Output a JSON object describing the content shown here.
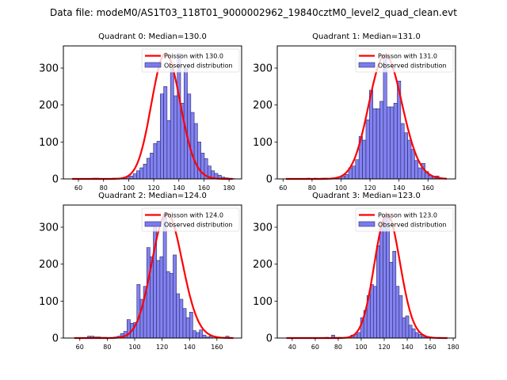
{
  "figure": {
    "suptitle": "Data file: modeM0/AS1T03_118T01_9000002962_19840cztM0_level2_quad_clean.evt"
  },
  "colors": {
    "bar_fill": "#7b7bf0",
    "bar_edge": "#2a2a6a",
    "poisson_line": "#ff0000"
  },
  "chart_data": [
    {
      "type": "bar",
      "title": "Quadrant 0: Median=130.0",
      "xlim": [
        48,
        190
      ],
      "ylim": [
        0,
        360
      ],
      "xticks": [
        60,
        80,
        100,
        120,
        140,
        160,
        180
      ],
      "yticks": [
        0,
        100,
        200,
        300
      ],
      "legend": {
        "position": "top-right",
        "entries": [
          "Poisson with 130.0",
          "Observed distribution"
        ]
      },
      "bin_width": 2.7,
      "bins_start": 55,
      "histogram": [
        0,
        0,
        0,
        0,
        0,
        0,
        2,
        2,
        0,
        1,
        0,
        0,
        2,
        0,
        2,
        3,
        5,
        8,
        14,
        22,
        30,
        40,
        56,
        70,
        96,
        102,
        230,
        250,
        158,
        298,
        225,
        340,
        205,
        300,
        230,
        180,
        150,
        100,
        70,
        55,
        35,
        22,
        15,
        10,
        5,
        3,
        2,
        1
      ],
      "poisson": {
        "mean": 130.0,
        "peak": 340,
        "x_range": [
          55,
          183
        ]
      }
    },
    {
      "type": "bar",
      "title": "Quadrant 1: Median=131.0",
      "xlim": [
        56,
        179
      ],
      "ylim": [
        0,
        360
      ],
      "xticks": [
        60,
        80,
        100,
        120,
        140,
        160
      ],
      "yticks": [
        0,
        100,
        200,
        300
      ],
      "legend": {
        "position": "top-right",
        "entries": [
          "Poisson with 131.0",
          "Observed distribution"
        ]
      },
      "bin_width": 2.4,
      "bins_start": 62,
      "histogram": [
        0,
        0,
        0,
        0,
        0,
        0,
        2,
        1,
        2,
        0,
        2,
        2,
        0,
        1,
        3,
        5,
        8,
        12,
        30,
        35,
        52,
        115,
        105,
        160,
        240,
        190,
        190,
        210,
        330,
        195,
        195,
        205,
        265,
        150,
        125,
        105,
        80,
        50,
        30,
        42,
        20,
        10,
        5,
        8,
        2,
        0
      ],
      "poisson": {
        "mean": 131.0,
        "peak": 335,
        "x_range": [
          62,
          173
        ]
      }
    },
    {
      "type": "bar",
      "title": "Quadrant 2: Median=124.0",
      "xlim": [
        48,
        178
      ],
      "ylim": [
        0,
        360
      ],
      "xticks": [
        60,
        80,
        100,
        120,
        140,
        160
      ],
      "yticks": [
        0,
        100,
        200,
        300
      ],
      "legend": {
        "position": "top-right",
        "entries": [
          "Poisson with 124.0",
          "Observed distribution"
        ]
      },
      "bin_width": 2.4,
      "bins_start": 56,
      "histogram": [
        0,
        0,
        0,
        0,
        5,
        5,
        3,
        3,
        2,
        2,
        1,
        1,
        3,
        5,
        12,
        18,
        50,
        40,
        42,
        145,
        105,
        140,
        245,
        220,
        305,
        210,
        220,
        335,
        180,
        175,
        225,
        120,
        105,
        80,
        55,
        70,
        20,
        15,
        22,
        8,
        3,
        5,
        0,
        2,
        0,
        2,
        5,
        0
      ],
      "poisson": {
        "mean": 124.0,
        "peak": 338,
        "x_range": [
          56,
          172
        ]
      }
    },
    {
      "type": "bar",
      "title": "Quadrant 3: Median=123.0",
      "xlim": [
        27,
        182
      ],
      "ylim": [
        0,
        360
      ],
      "xticks": [
        40,
        60,
        80,
        100,
        120,
        140,
        160,
        180
      ],
      "yticks": [
        0,
        100,
        200,
        300
      ],
      "legend": {
        "position": "top-right",
        "entries": [
          "Poisson with 123.0",
          "Observed distribution"
        ]
      },
      "bin_width": 2.8,
      "bins_start": 35,
      "histogram": [
        0,
        0,
        0,
        0,
        0,
        0,
        0,
        0,
        0,
        0,
        0,
        0,
        2,
        0,
        8,
        2,
        2,
        1,
        2,
        0,
        8,
        10,
        15,
        55,
        75,
        115,
        145,
        140,
        250,
        315,
        330,
        330,
        205,
        235,
        140,
        115,
        55,
        60,
        35,
        25,
        15,
        10,
        5,
        3,
        0,
        2,
        0,
        1,
        0,
        0
      ],
      "poisson": {
        "mean": 123.0,
        "peak": 335,
        "x_range": [
          35,
          175
        ]
      }
    }
  ]
}
